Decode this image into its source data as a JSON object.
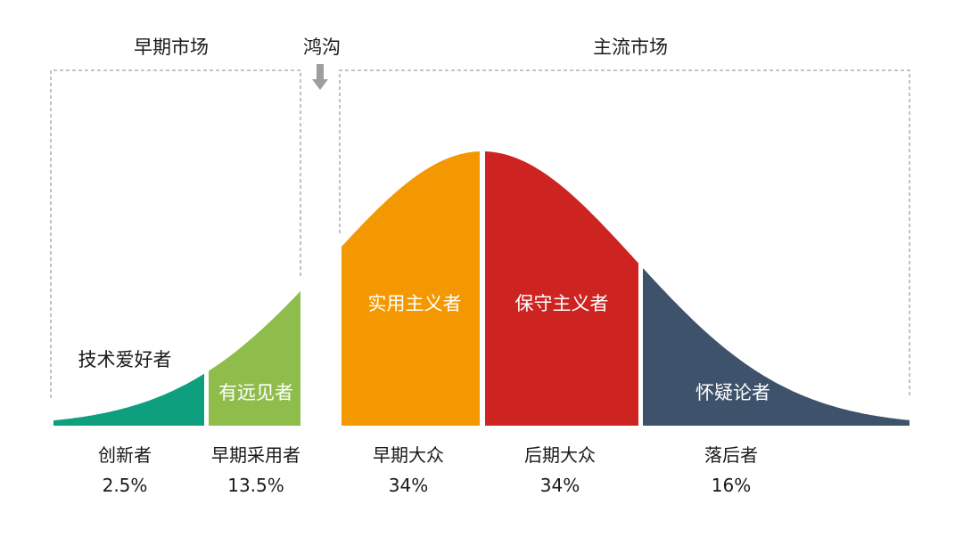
{
  "headers": {
    "early_market": "早期市场",
    "chasm": "鸿沟",
    "mainstream_market": "主流市场"
  },
  "segments": [
    {
      "inner_label": "技术爱好者",
      "name": "创新者",
      "percent": "2.5%",
      "color": "#0e9f7e"
    },
    {
      "inner_label": "有远见者",
      "name": "早期采用者",
      "percent": "13.5%",
      "color": "#8fbd4c"
    },
    {
      "inner_label": "实用主义者",
      "name": "早期大众",
      "percent": "34%",
      "color": "#f39800"
    },
    {
      "inner_label": "保守主义者",
      "name": "后期大众",
      "percent": "34%",
      "color": "#cd2421"
    },
    {
      "inner_label": "怀疑论者",
      "name": "落后者",
      "percent": "16%",
      "color": "#3f526b"
    }
  ],
  "colors": {
    "dashed_border": "#a0a0a0",
    "arrow": "#9e9e9e",
    "text": "#1a1a1a"
  }
}
